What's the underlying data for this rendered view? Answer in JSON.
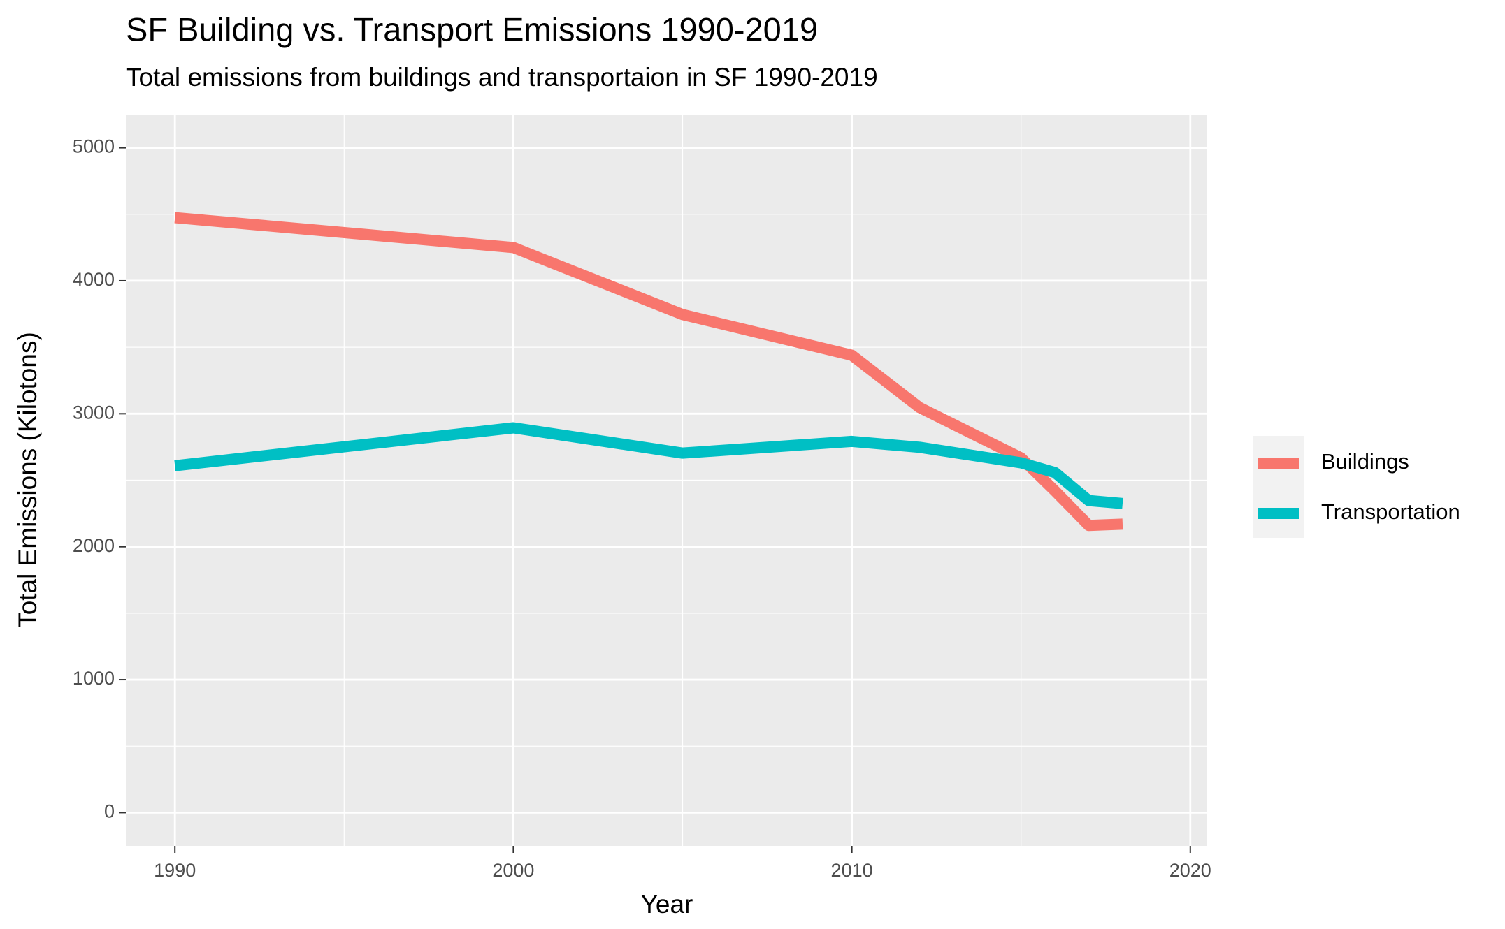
{
  "chart_data": {
    "type": "line",
    "title": "SF Building vs. Transport Emissions 1990-2019",
    "subtitle": "Total emissions from buildings and transportaion in SF 1990-2019",
    "x_label": "Year",
    "y_label": "Total Emissions (Kilotons)",
    "x": [
      1990,
      2000,
      2005,
      2010,
      2012,
      2015,
      2016,
      2017,
      2018
    ],
    "series": [
      {
        "name": "Buildings",
        "color": "#f8766d",
        "values": [
          4475,
          4250,
          3746,
          3440,
          3047,
          2668,
          2420,
          2160,
          2170
        ]
      },
      {
        "name": "Transportation",
        "color": "#00bfc4",
        "values": [
          2609,
          2894,
          2704,
          2792,
          2748,
          2631,
          2558,
          2347,
          2325
        ]
      }
    ],
    "xlim": [
      1988.55,
      2020.5
    ],
    "xticks": [
      1990,
      2000,
      2010,
      2020
    ],
    "xminor": [
      1995,
      2005,
      2015
    ],
    "ylim": [
      -250,
      5250
    ],
    "yticks": [
      0,
      1000,
      2000,
      3000,
      4000,
      5000
    ],
    "yminor": [
      500,
      1500,
      2500,
      3500,
      4500
    ],
    "grid": true,
    "legend": "right"
  }
}
